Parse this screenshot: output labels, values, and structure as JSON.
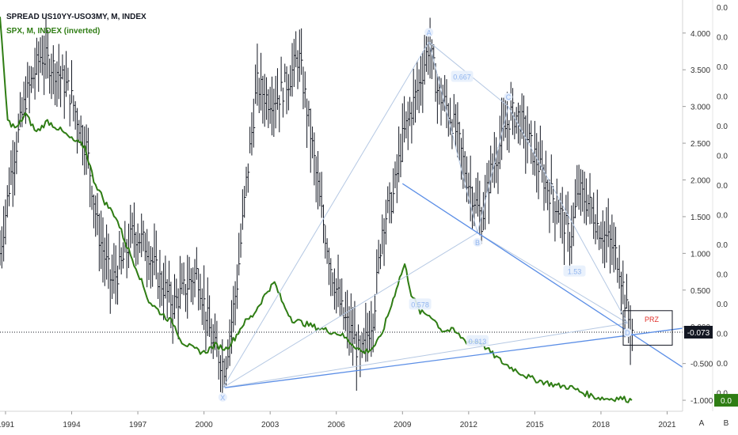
{
  "chart_data": {
    "type": "ohlc+line",
    "legend": [
      {
        "label": "SPREAD US10YY-USO3MY, M, INDEX",
        "color": "#131722"
      },
      {
        "label": "SPX, M, INDEX (inverted)",
        "color": "#2f7d14"
      }
    ],
    "x_tick_labels": [
      "1991",
      "1994",
      "1997",
      "2000",
      "2003",
      "2006",
      "2009",
      "2012",
      "2015",
      "2018",
      "2021"
    ],
    "y_axis_main_labels": [
      "4.000",
      "3.500",
      "3.000",
      "2.500",
      "2.000",
      "1.500",
      "1.000",
      "0.500",
      "0.000",
      "-0.500",
      "-1.000"
    ],
    "y_axis_secondary_labels": [
      "0.0",
      "0.0",
      "0.0",
      "0.0",
      "0.0",
      "0.0",
      "0.0",
      "0.0",
      "0.0",
      "0.0",
      "0.0",
      "0.0",
      "0.0",
      "0.0"
    ],
    "last_price_label": "-0.073",
    "spx_last_label": "0.0",
    "ylim": [
      -1.15,
      4.45
    ],
    "xlim": [
      1990.75,
      2021.7
    ],
    "spread_anchors": [
      [
        1990.75,
        1.0
      ],
      [
        1991.3,
        2.2
      ],
      [
        1991.9,
        3.1
      ],
      [
        1992.6,
        3.7
      ],
      [
        1993.3,
        3.5
      ],
      [
        1993.9,
        3.2
      ],
      [
        1994.7,
        2.4
      ],
      [
        1995.2,
        1.3
      ],
      [
        1995.8,
        0.6
      ],
      [
        1996.2,
        0.8
      ],
      [
        1996.8,
        1.3
      ],
      [
        1997.4,
        1.1
      ],
      [
        1997.9,
        0.7
      ],
      [
        1998.6,
        0.3
      ],
      [
        1999.2,
        0.55
      ],
      [
        1999.7,
        0.75
      ],
      [
        2000.4,
        -0.25
      ],
      [
        2000.95,
        -0.55
      ],
      [
        2001.5,
        0.6
      ],
      [
        2001.9,
        1.9
      ],
      [
        2002.4,
        3.3
      ],
      [
        2002.9,
        3.1
      ],
      [
        2003.4,
        3.15
      ],
      [
        2003.9,
        3.4
      ],
      [
        2004.3,
        3.7
      ],
      [
        2004.8,
        2.7
      ],
      [
        2005.3,
        1.6
      ],
      [
        2005.8,
        0.75
      ],
      [
        2006.3,
        0.15
      ],
      [
        2006.8,
        -0.15
      ],
      [
        2007.1,
        -0.45
      ],
      [
        2007.7,
        0.2
      ],
      [
        2008.1,
        1.4
      ],
      [
        2008.6,
        1.8
      ],
      [
        2009.0,
        2.55
      ],
      [
        2009.3,
        2.85
      ],
      [
        2009.8,
        3.35
      ],
      [
        2010.2,
        3.85
      ],
      [
        2010.6,
        3.2
      ],
      [
        2011.0,
        3.0
      ],
      [
        2011.5,
        2.6
      ],
      [
        2011.9,
        2.05
      ],
      [
        2012.3,
        1.7
      ],
      [
        2012.6,
        1.45
      ],
      [
        2013.0,
        2.1
      ],
      [
        2013.5,
        2.55
      ],
      [
        2013.9,
        2.9
      ],
      [
        2014.3,
        2.85
      ],
      [
        2014.9,
        2.4
      ],
      [
        2015.5,
        1.95
      ],
      [
        2016.1,
        1.6
      ],
      [
        2016.6,
        1.2
      ],
      [
        2017.0,
        1.85
      ],
      [
        2017.5,
        1.65
      ],
      [
        2017.9,
        1.35
      ],
      [
        2018.4,
        1.15
      ],
      [
        2018.8,
        0.9
      ],
      [
        2019.0,
        0.55
      ],
      [
        2019.2,
        0.15
      ],
      [
        2019.45,
        -0.07
      ]
    ],
    "spx_inverted_points": [
      [
        1990.75,
        4.2
      ],
      [
        1991.1,
        2.8
      ],
      [
        1991.5,
        2.7
      ],
      [
        1991.9,
        2.9
      ],
      [
        1992.4,
        2.65
      ],
      [
        1992.9,
        2.8
      ],
      [
        1993.4,
        2.7
      ],
      [
        1994.0,
        2.55
      ],
      [
        1994.6,
        2.45
      ],
      [
        1995.0,
        2.0
      ],
      [
        1995.5,
        1.7
      ],
      [
        1996.0,
        1.5
      ],
      [
        1996.5,
        1.1
      ],
      [
        1997.0,
        0.75
      ],
      [
        1997.5,
        0.35
      ],
      [
        1998.0,
        0.2
      ],
      [
        1998.6,
        0.05
      ],
      [
        1999.0,
        -0.2
      ],
      [
        1999.5,
        -0.3
      ],
      [
        2000.0,
        -0.35
      ],
      [
        2000.5,
        -0.25
      ],
      [
        2001.0,
        -0.3
      ],
      [
        2001.4,
        -0.15
      ],
      [
        2001.8,
        0.05
      ],
      [
        2002.2,
        0.15
      ],
      [
        2002.6,
        0.35
      ],
      [
        2002.9,
        0.5
      ],
      [
        2003.2,
        0.6
      ],
      [
        2003.6,
        0.3
      ],
      [
        2004.0,
        0.1
      ],
      [
        2004.5,
        0.05
      ],
      [
        2005.0,
        0.0
      ],
      [
        2005.6,
        -0.05
      ],
      [
        2006.2,
        -0.1
      ],
      [
        2006.8,
        -0.25
      ],
      [
        2007.2,
        -0.35
      ],
      [
        2007.6,
        -0.3
      ],
      [
        2008.0,
        -0.15
      ],
      [
        2008.5,
        0.3
      ],
      [
        2008.8,
        0.6
      ],
      [
        2009.1,
        0.85
      ],
      [
        2009.4,
        0.45
      ],
      [
        2009.8,
        0.2
      ],
      [
        2010.3,
        0.15
      ],
      [
        2010.8,
        -0.05
      ],
      [
        2011.3,
        -0.05
      ],
      [
        2011.9,
        -0.2
      ],
      [
        2012.5,
        -0.2
      ],
      [
        2013.0,
        -0.35
      ],
      [
        2013.6,
        -0.5
      ],
      [
        2014.2,
        -0.6
      ],
      [
        2014.8,
        -0.7
      ],
      [
        2015.4,
        -0.75
      ],
      [
        2016.0,
        -0.8
      ],
      [
        2016.6,
        -0.82
      ],
      [
        2017.2,
        -0.9
      ],
      [
        2017.8,
        -0.96
      ],
      [
        2018.3,
        -0.98
      ],
      [
        2018.8,
        -0.97
      ],
      [
        2019.4,
        -1.0
      ]
    ],
    "pattern_points": [
      {
        "label": "X",
        "x": 2000.85,
        "y": -0.83
      },
      {
        "label": "A",
        "x": 2010.2,
        "y": 3.88
      },
      {
        "label": "B",
        "x": 2012.4,
        "y": 1.28
      },
      {
        "label": "C",
        "x": 2013.8,
        "y": 3.0
      },
      {
        "label": "D",
        "x": 2019.2,
        "y": 0.05
      }
    ],
    "pattern_ratios": [
      {
        "label": "0.667",
        "x": 2011.7,
        "y": 3.4
      },
      {
        "label": "0.578",
        "x": 2009.8,
        "y": 0.3
      },
      {
        "label": "0.813",
        "x": 2012.4,
        "y": -0.2
      },
      {
        "label": "1.53",
        "x": 2016.8,
        "y": 0.75
      }
    ],
    "prz_label": "PRZ",
    "colors": {
      "spread": "#131722",
      "spx": "#2f7d14",
      "trendline": "#5b8ee6",
      "pattern": "#b5c8e3",
      "pattern_label": "#90b4ee",
      "prz": "#e0302a"
    }
  },
  "bottom_buttons": {
    "auto": "A",
    "log": "B"
  }
}
